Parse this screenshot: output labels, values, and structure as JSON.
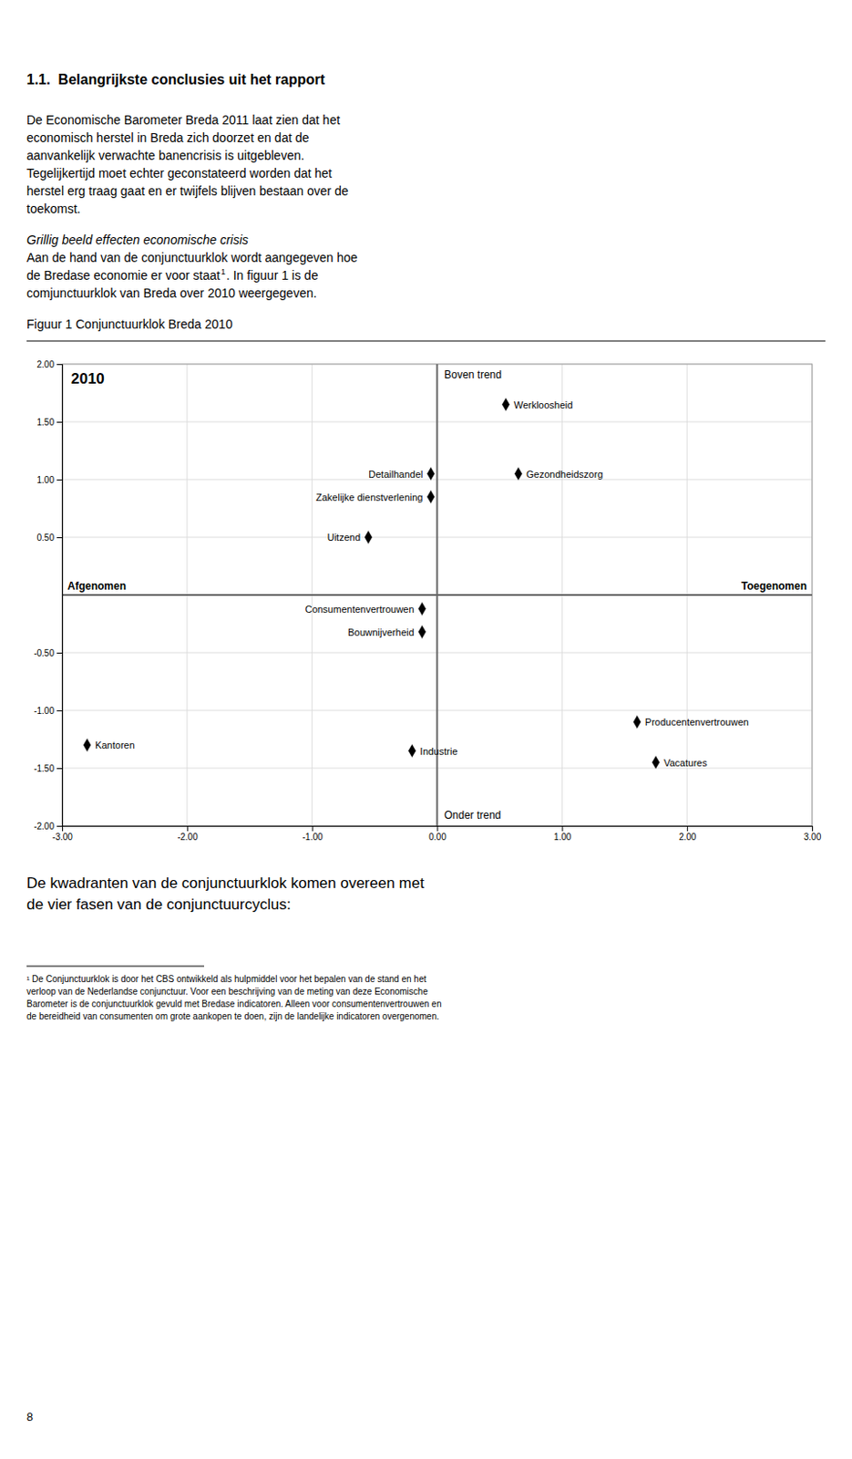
{
  "page": {
    "heading": "1.1.  Belangrijkste conclusies uit het rapport",
    "paragraph_1": [
      "De Economische Barometer Breda 2011 laat zien dat het",
      "economisch herstel in Breda zich doorzet en dat de",
      "aanvankelijk verwachte banencrisis is uitgebleven.",
      "Tegelijkertijd moet echter geconstateerd worden dat het",
      "herstel erg traag gaat en er twijfels blijven bestaan over de",
      "toekomst."
    ],
    "italic_heading": "Grillig beeld effecten economische crisis",
    "paragraph_2": [
      {
        "text": "Aan de hand van de conjunctuurklok wordt aangegeven hoe"
      },
      {
        "text": "de Bredase economie er voor staat",
        "footnote_ref": "1",
        "after": ". In figuur 1 is de"
      },
      {
        "text": "comjunctuurklok van Breda over 2010 weergegeven."
      }
    ],
    "bottom_paragraph": [
      "De kwadranten van de conjunctuurklok komen overeen met",
      "de vier fasen van de conjunctuurcyclus:"
    ],
    "footnote": [
      "¹ De Conjunctuurklok is door het CBS ontwikkeld als hulpmiddel voor het bepalen van de stand en het",
      "verloop van de Nederlandse conjunctuur. Voor een beschrijving van de meting van deze Economische",
      "Barometer is de conjunctuurklok gevuld met Bredase indicatoren. Alleen voor consumentenvertrouwen en",
      "de bereidheid van consumenten om grote aankopen te doen, zijn de landelijke indicatoren overgenomen."
    ],
    "page_number": "8"
  },
  "chart_data": {
    "type": "scatter",
    "title": "Figuur 1 Conjunctuurklok Breda 2010",
    "labels": [
      "Werkloosheid",
      "Gezondheidszorg",
      "Detailhandel",
      "Zakelijke dienstverlening",
      "Uitzend",
      "Consumentenvertrouwen",
      "Bouwnijverheid",
      "Kantoren",
      "Industrie",
      "Producentenvertrouwen",
      "Vacatures"
    ],
    "x": [
      0.55,
      0.65,
      -0.05,
      -0.05,
      -0.55,
      -0.12,
      -0.12,
      -2.8,
      -0.2,
      1.6,
      1.75
    ],
    "y": [
      1.65,
      1.05,
      1.05,
      0.85,
      0.5,
      -0.12,
      -0.32,
      -1.3,
      -1.35,
      -1.1,
      -1.45
    ],
    "marker": "diamond",
    "color": "#000000",
    "xlim": [
      -3.0,
      3.0
    ],
    "ylim": [
      -2.0,
      2.0
    ],
    "xticks": [
      {
        "value": -3.0,
        "label": "-3.00"
      },
      {
        "value": -2.0,
        "label": "-2.00"
      },
      {
        "value": -1.0,
        "label": "-1.00"
      },
      {
        "value": 0.0,
        "label": "0.00"
      },
      {
        "value": 1.0,
        "label": "1.00"
      },
      {
        "value": 2.0,
        "label": "2.00"
      },
      {
        "value": 3.0,
        "label": "3.00"
      }
    ],
    "yticks": [
      {
        "value": -2.0,
        "label": "-2.00"
      },
      {
        "value": -1.5,
        "label": "-1.50"
      },
      {
        "value": -1.0,
        "label": "-1.00"
      },
      {
        "value": -0.5,
        "label": "-0.50"
      },
      {
        "value": 0.5,
        "label": "0.50"
      },
      {
        "value": 1.0,
        "label": "1.00"
      },
      {
        "value": 1.5,
        "label": "1.50"
      },
      {
        "value": 2.0,
        "label": "2.00"
      }
    ],
    "quadrant_axes": {
      "x": 0.0,
      "y": 0.0
    },
    "grid": true,
    "annotations": {
      "year": "2010",
      "above_trend": "Boven trend",
      "below_trend": "Onder trend",
      "decreased": "Afgenomen",
      "increased": "Toegenomen"
    }
  }
}
